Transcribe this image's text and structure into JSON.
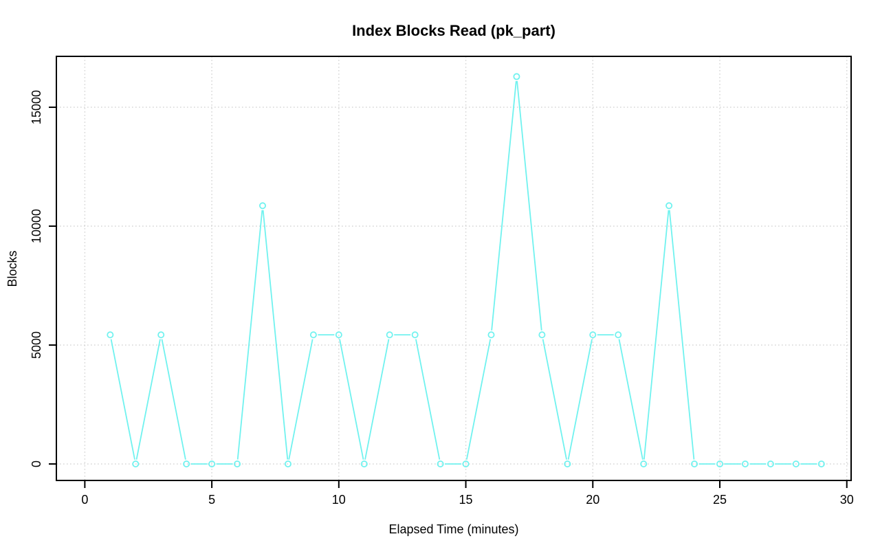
{
  "chart_data": {
    "type": "line",
    "title": "Index Blocks Read (pk_part)",
    "xlabel": "Elapsed Time (minutes)",
    "ylabel": "Blocks",
    "x": [
      1,
      2,
      3,
      4,
      5,
      6,
      7,
      8,
      9,
      10,
      11,
      12,
      13,
      14,
      15,
      16,
      17,
      18,
      19,
      20,
      21,
      22,
      23,
      24,
      25,
      26,
      27,
      28,
      29
    ],
    "values": [
      5430,
      0,
      5430,
      0,
      0,
      0,
      10860,
      0,
      5430,
      5430,
      0,
      5430,
      5430,
      0,
      0,
      5430,
      16290,
      5430,
      0,
      5430,
      5430,
      0,
      10860,
      0,
      0,
      0,
      0,
      0,
      0
    ],
    "xticks": [
      0,
      5,
      10,
      15,
      20,
      25,
      30
    ],
    "yticks": [
      0,
      5000,
      10000,
      15000
    ],
    "xlim": [
      -1.12,
      30.17
    ],
    "ylim": [
      -694,
      17140
    ],
    "grid": true,
    "grid_style": "dotted",
    "legend": "none",
    "marker": "open-circle",
    "line_style": "between-points-with-gaps",
    "colors": {
      "line": "#70F2EF",
      "grid": "#D6D6D6",
      "frame": "#000000",
      "text": "#000000",
      "background": "#FFFFFF"
    }
  }
}
